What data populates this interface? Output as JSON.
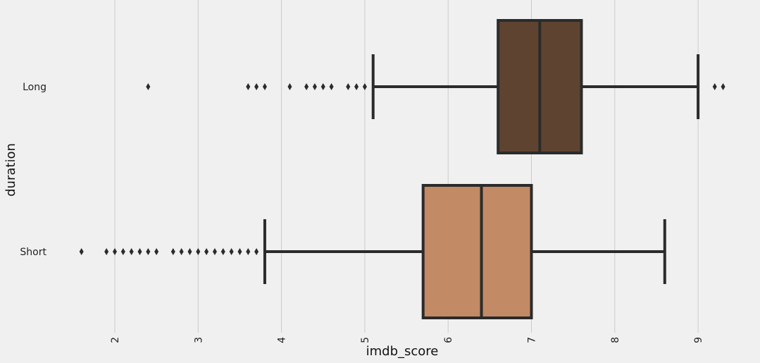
{
  "chart_data": {
    "type": "box",
    "orientation": "horizontal",
    "xlabel": "imdb_score",
    "ylabel": "duration",
    "xlim": [
      1.4,
      9.4
    ],
    "xticks": [
      "2",
      "3",
      "4",
      "5",
      "6",
      "7",
      "8",
      "9"
    ],
    "grid": "vertical",
    "categories": [
      "Long",
      "Short"
    ],
    "boxes": [
      {
        "category": "Long",
        "color": "#5f4331",
        "whisker_low": 5.1,
        "q1": 6.6,
        "median": 7.1,
        "q3": 7.6,
        "whisker_high": 9.0,
        "outliers": [
          2.4,
          3.6,
          3.7,
          3.8,
          4.1,
          4.3,
          4.4,
          4.5,
          4.6,
          4.8,
          4.9,
          5.0,
          9.2,
          9.3
        ]
      },
      {
        "category": "Short",
        "color": "#c28a65",
        "whisker_low": 3.8,
        "q1": 5.7,
        "median": 6.4,
        "q3": 7.0,
        "whisker_high": 8.6,
        "outliers": [
          1.6,
          1.9,
          2.0,
          2.1,
          2.2,
          2.3,
          2.4,
          2.5,
          2.7,
          2.8,
          2.9,
          3.0,
          3.1,
          3.2,
          3.3,
          3.4,
          3.5,
          3.6,
          3.7
        ]
      }
    ]
  }
}
